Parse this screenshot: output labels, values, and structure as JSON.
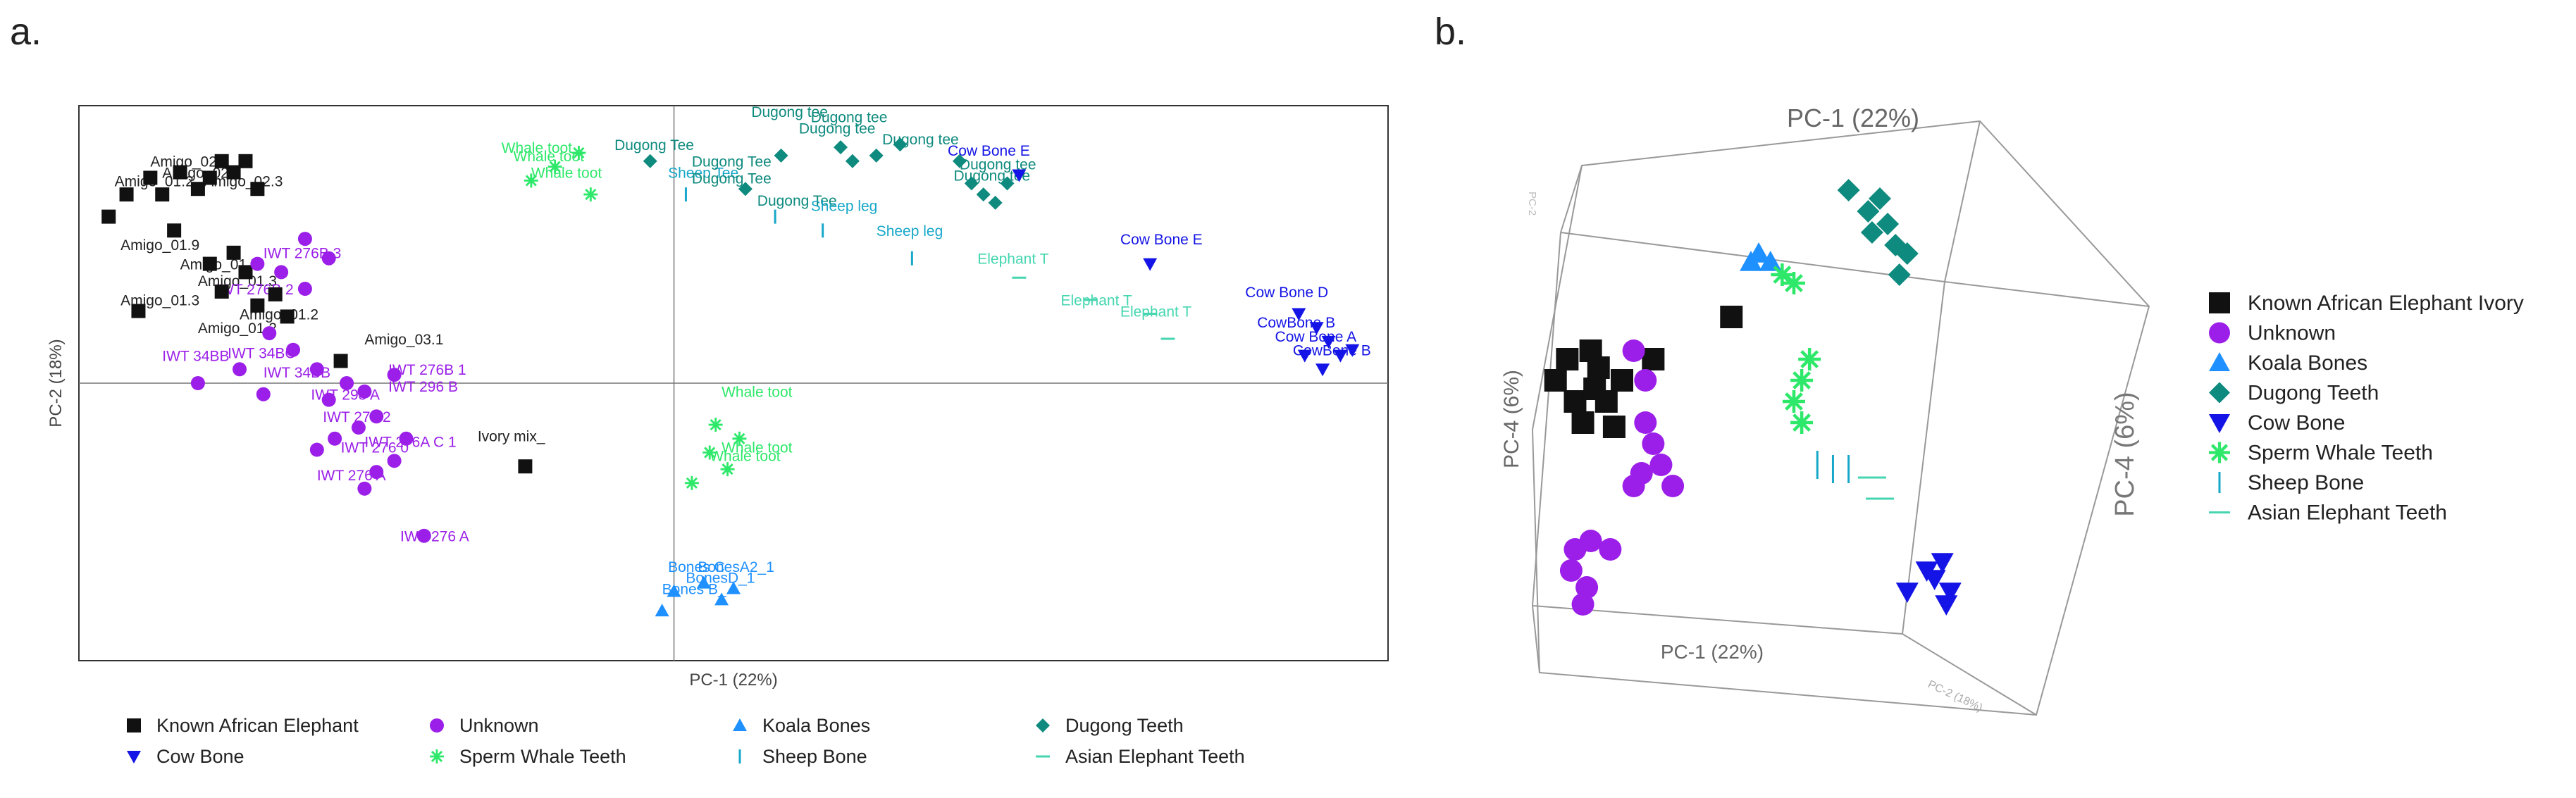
{
  "panels": {
    "a": "a.",
    "b": "b."
  },
  "chart_data": [
    {
      "type": "scatter",
      "panel": "a",
      "title": "",
      "xlabel": "PC-1 (22%)",
      "ylabel": "PC-2 (18%)",
      "xlim": [
        -1.0,
        1.2
      ],
      "ylim": [
        -1.0,
        1.0
      ],
      "grid": false,
      "legend": [
        {
          "name": "Known African Elephant",
          "marker": "square",
          "color": "#111111"
        },
        {
          "name": "Unknown",
          "marker": "circle",
          "color": "#9b1fe8"
        },
        {
          "name": "Koala Bones",
          "marker": "triangle-up",
          "color": "#1e90ff"
        },
        {
          "name": "Dugong Teeth",
          "marker": "diamond",
          "color": "#0e8a7e"
        },
        {
          "name": "Cow Bone",
          "marker": "triangle-down",
          "color": "#1414e6"
        },
        {
          "name": "Sperm Whale Teeth",
          "marker": "star",
          "color": "#2ee86a"
        },
        {
          "name": "Sheep Bone",
          "marker": "vline",
          "color": "#17a7c9"
        },
        {
          "name": "Asian Elephant Teeth",
          "marker": "hline",
          "color": "#45d6b0"
        }
      ],
      "series": [
        {
          "name": "Known African Elephant",
          "points": [
            [
              -0.95,
              0.6
            ],
            [
              -0.92,
              0.68
            ],
            [
              -0.88,
              0.74
            ],
            [
              -0.86,
              0.68
            ],
            [
              -0.83,
              0.76
            ],
            [
              -0.8,
              0.7
            ],
            [
              -0.78,
              0.74
            ],
            [
              -0.76,
              0.8
            ],
            [
              -0.74,
              0.76
            ],
            [
              -0.72,
              0.8
            ],
            [
              -0.7,
              0.7
            ],
            [
              -0.84,
              0.55
            ],
            [
              -0.78,
              0.43
            ],
            [
              -0.74,
              0.47
            ],
            [
              -0.76,
              0.33
            ],
            [
              -0.72,
              0.4
            ],
            [
              -0.7,
              0.28
            ],
            [
              -0.67,
              0.32
            ],
            [
              -0.65,
              0.24
            ],
            [
              -0.9,
              0.26
            ],
            [
              -0.56,
              0.08
            ],
            [
              -0.25,
              -0.3
            ]
          ]
        },
        {
          "name": "Unknown",
          "points": [
            [
              -0.62,
              0.52
            ],
            [
              -0.58,
              0.45
            ],
            [
              -0.7,
              0.43
            ],
            [
              -0.66,
              0.4
            ],
            [
              -0.62,
              0.34
            ],
            [
              -0.68,
              0.18
            ],
            [
              -0.64,
              0.12
            ],
            [
              -0.6,
              0.05
            ],
            [
              -0.55,
              0.0
            ],
            [
              -0.52,
              -0.03
            ],
            [
              -0.58,
              -0.06
            ],
            [
              -0.47,
              0.03
            ],
            [
              -0.5,
              -0.12
            ],
            [
              -0.53,
              -0.16
            ],
            [
              -0.45,
              -0.2
            ],
            [
              -0.47,
              -0.28
            ],
            [
              -0.5,
              -0.32
            ],
            [
              -0.57,
              -0.2
            ],
            [
              -0.6,
              -0.24
            ],
            [
              -0.52,
              -0.38
            ],
            [
              -0.42,
              -0.55
            ],
            [
              -0.8,
              0.0
            ],
            [
              -0.73,
              0.05
            ],
            [
              -0.69,
              -0.04
            ]
          ]
        },
        {
          "name": "Koala Bones",
          "points": [
            [
              0.0,
              -0.75
            ],
            [
              0.05,
              -0.72
            ],
            [
              0.08,
              -0.78
            ],
            [
              -0.02,
              -0.82
            ],
            [
              0.1,
              -0.74
            ]
          ]
        },
        {
          "name": "Dugong Teeth",
          "points": [
            [
              -0.04,
              0.8
            ],
            [
              0.12,
              0.7
            ],
            [
              0.18,
              0.82
            ],
            [
              0.28,
              0.85
            ],
            [
              0.3,
              0.8
            ],
            [
              0.34,
              0.82
            ],
            [
              0.38,
              0.86
            ],
            [
              0.48,
              0.8
            ],
            [
              0.5,
              0.72
            ],
            [
              0.52,
              0.68
            ],
            [
              0.56,
              0.72
            ],
            [
              0.54,
              0.65
            ]
          ]
        },
        {
          "name": "Cow Bone",
          "points": [
            [
              0.58,
              0.75
            ],
            [
              0.8,
              0.43
            ],
            [
              1.05,
              0.25
            ],
            [
              1.08,
              0.2
            ],
            [
              1.1,
              0.15
            ],
            [
              1.12,
              0.1
            ],
            [
              1.09,
              0.05
            ],
            [
              1.06,
              0.1
            ],
            [
              1.14,
              0.12
            ]
          ]
        },
        {
          "name": "Sperm Whale Teeth",
          "points": [
            [
              -0.2,
              0.78
            ],
            [
              -0.16,
              0.83
            ],
            [
              -0.24,
              0.73
            ],
            [
              -0.14,
              0.68
            ],
            [
              0.07,
              -0.15
            ],
            [
              0.11,
              -0.2
            ],
            [
              0.06,
              -0.25
            ],
            [
              0.09,
              -0.31
            ],
            [
              0.03,
              -0.36
            ]
          ]
        },
        {
          "name": "Sheep Bone",
          "points": [
            [
              0.02,
              0.68
            ],
            [
              0.17,
              0.6
            ],
            [
              0.25,
              0.55
            ],
            [
              0.4,
              0.45
            ]
          ]
        },
        {
          "name": "Asian Elephant Teeth",
          "points": [
            [
              0.58,
              0.38
            ],
            [
              0.7,
              0.3
            ],
            [
              0.8,
              0.25
            ],
            [
              0.83,
              0.16
            ]
          ]
        }
      ],
      "annotations": [
        [
          "Amigo_02.3",
          -0.88,
          0.78
        ],
        [
          "Amigo_02.3",
          -0.79,
          0.71
        ],
        [
          "Amigo_01.2",
          -0.94,
          0.71
        ],
        [
          "Amigo_02.3",
          -0.86,
          0.74
        ],
        [
          "Amigo_01.9",
          -0.93,
          0.48
        ],
        [
          "Amigo_01.7",
          -0.83,
          0.41
        ],
        [
          "Amigo_01.3",
          -0.8,
          0.35
        ],
        [
          "Amigo_01.3",
          -0.93,
          0.28
        ],
        [
          "Amigo_01.2",
          -0.73,
          0.23
        ],
        [
          "Amigo_01.2",
          -0.8,
          0.18
        ],
        [
          "Amigo_03.1",
          -0.52,
          0.14
        ],
        [
          "Ivory mix_",
          -0.33,
          -0.21
        ],
        [
          "IWT 276B 3",
          -0.69,
          0.45
        ],
        [
          "IWT 276B 2",
          -0.77,
          0.32
        ],
        [
          "IWT 34BB",
          -0.86,
          0.08
        ],
        [
          "IWT 34BB",
          -0.69,
          0.02
        ],
        [
          "IWT 34BC",
          -0.75,
          0.09
        ],
        [
          "IWT 276B 1",
          -0.48,
          0.03
        ],
        [
          "IWT 296 B",
          -0.48,
          -0.03
        ],
        [
          "IWT 298 A",
          -0.61,
          -0.06
        ],
        [
          "IWT 276 2",
          -0.59,
          -0.14
        ],
        [
          "IWT 276A C 1",
          -0.52,
          -0.23
        ],
        [
          "IWT 276 0",
          -0.56,
          -0.25
        ],
        [
          "IWT 276 A",
          -0.6,
          -0.35
        ],
        [
          "IWT 276 A",
          -0.46,
          -0.57
        ],
        [
          "Bones C",
          -0.01,
          -0.68
        ],
        [
          "BonesA2_1",
          0.04,
          -0.68
        ],
        [
          "BonesD_1",
          0.02,
          -0.72
        ],
        [
          "Bones B_",
          -0.02,
          -0.76
        ],
        [
          "Whale toot",
          -0.29,
          0.83
        ],
        [
          "Whale toot",
          -0.27,
          0.8
        ],
        [
          "Whale toot",
          -0.24,
          0.74
        ],
        [
          "Whale toot",
          0.08,
          -0.05
        ],
        [
          "Whale toot",
          0.08,
          -0.25
        ],
        [
          "Whale toot",
          0.06,
          -0.28
        ],
        [
          "Dugong Tee",
          -0.1,
          0.84
        ],
        [
          "Sheep Tee",
          -0.01,
          0.74
        ],
        [
          "Dugong Tee",
          0.03,
          0.78
        ],
        [
          "Dugong Tee",
          0.03,
          0.72
        ],
        [
          "Dugong Tee",
          0.14,
          0.64
        ],
        [
          "Dugong tee",
          0.13,
          0.96
        ],
        [
          "Dugong tee",
          0.23,
          0.94
        ],
        [
          "Dugong tee",
          0.21,
          0.9
        ],
        [
          "Dugong tee",
          0.35,
          0.86
        ],
        [
          "Dugong tee",
          0.48,
          0.77
        ],
        [
          "Dugong tee",
          0.47,
          0.73
        ],
        [
          "Cow Bone E",
          0.46,
          0.82
        ],
        [
          "Sheep leg",
          0.23,
          0.62
        ],
        [
          "Sheep leg",
          0.34,
          0.53
        ],
        [
          "Elephant T",
          0.51,
          0.43
        ],
        [
          "Elephant T",
          0.65,
          0.28
        ],
        [
          "Elephant T",
          0.75,
          0.24
        ],
        [
          "Cow Bone E",
          0.75,
          0.5
        ],
        [
          "Cow Bone D",
          0.96,
          0.31
        ],
        [
          "CowBone B",
          0.98,
          0.2
        ],
        [
          "Cow Bone A",
          1.01,
          0.15
        ],
        [
          "CowBone B",
          1.04,
          0.1
        ]
      ]
    },
    {
      "type": "scatter",
      "panel": "b",
      "title": "",
      "axis_labels": {
        "top": "PC-1 (22%)",
        "bottom": "PC-1 (22%)",
        "left": "PC-4 (6%)",
        "right": "PC-4 (6%)",
        "faint_top_left": "PC-2",
        "faint_bottom_right": "PC-2 (18%)"
      },
      "legend": [
        {
          "name": "Known African Elephant Ivory",
          "marker": "square",
          "color": "#111111"
        },
        {
          "name": "Unknown",
          "marker": "circle",
          "color": "#9b1fe8"
        },
        {
          "name": "Koala Bones",
          "marker": "triangle-up",
          "color": "#1e90ff"
        },
        {
          "name": "Dugong Teeth",
          "marker": "diamond",
          "color": "#0e8a7e"
        },
        {
          "name": "Cow Bone",
          "marker": "triangle-down",
          "color": "#1414e6"
        },
        {
          "name": "Sperm Whale Teeth",
          "marker": "star",
          "color": "#2ee86a"
        },
        {
          "name": "Sheep Bone",
          "marker": "vline",
          "color": "#17a7c9"
        },
        {
          "name": "Asian Elephant Teeth",
          "marker": "hline",
          "color": "#45d6b0"
        }
      ],
      "series": [
        {
          "name": "Known African Elephant Ivory",
          "points": [
            [
              0.05,
              0.55
            ],
            [
              0.1,
              0.5
            ],
            [
              0.08,
              0.6
            ],
            [
              0.15,
              0.53
            ],
            [
              0.12,
              0.45
            ],
            [
              0.18,
              0.5
            ],
            [
              0.2,
              0.44
            ],
            [
              0.16,
              0.58
            ],
            [
              0.22,
              0.55
            ],
            [
              0.14,
              0.62
            ],
            [
              0.3,
              0.6
            ],
            [
              0.5,
              0.7
            ]
          ]
        },
        {
          "name": "Unknown",
          "points": [
            [
              0.25,
              0.62
            ],
            [
              0.28,
              0.55
            ],
            [
              0.28,
              0.45
            ],
            [
              0.3,
              0.4
            ],
            [
              0.27,
              0.33
            ],
            [
              0.32,
              0.35
            ],
            [
              0.35,
              0.3
            ],
            [
              0.25,
              0.3
            ],
            [
              0.1,
              0.15
            ],
            [
              0.14,
              0.17
            ],
            [
              0.09,
              0.1
            ],
            [
              0.13,
              0.06
            ],
            [
              0.12,
              0.02
            ],
            [
              0.19,
              0.15
            ]
          ]
        },
        {
          "name": "Koala Bones",
          "points": [
            [
              0.55,
              0.83
            ],
            [
              0.57,
              0.85
            ],
            [
              0.6,
              0.83
            ]
          ]
        },
        {
          "name": "Dugong Teeth",
          "points": [
            [
              0.8,
              1.0
            ],
            [
              0.85,
              0.95
            ],
            [
              0.88,
              0.98
            ],
            [
              0.9,
              0.92
            ],
            [
              0.86,
              0.9
            ],
            [
              0.92,
              0.87
            ],
            [
              0.95,
              0.85
            ],
            [
              0.93,
              0.8
            ]
          ]
        },
        {
          "name": "Cow Bone",
          "points": [
            [
              0.95,
              0.05
            ],
            [
              1.0,
              0.1
            ],
            [
              1.02,
              0.08
            ],
            [
              1.04,
              0.12
            ],
            [
              1.06,
              0.05
            ],
            [
              1.05,
              0.02
            ]
          ]
        },
        {
          "name": "Sperm Whale Teeth",
          "points": [
            [
              0.63,
              0.8
            ],
            [
              0.66,
              0.78
            ],
            [
              0.68,
              0.55
            ],
            [
              0.7,
              0.6
            ],
            [
              0.66,
              0.5
            ],
            [
              0.68,
              0.45
            ]
          ]
        },
        {
          "name": "Sheep Bone",
          "points": [
            [
              0.72,
              0.35
            ],
            [
              0.76,
              0.34
            ],
            [
              0.8,
              0.34
            ]
          ]
        },
        {
          "name": "Asian Elephant Teeth",
          "points": [
            [
              0.86,
              0.32
            ],
            [
              0.88,
              0.27
            ]
          ]
        }
      ]
    }
  ]
}
